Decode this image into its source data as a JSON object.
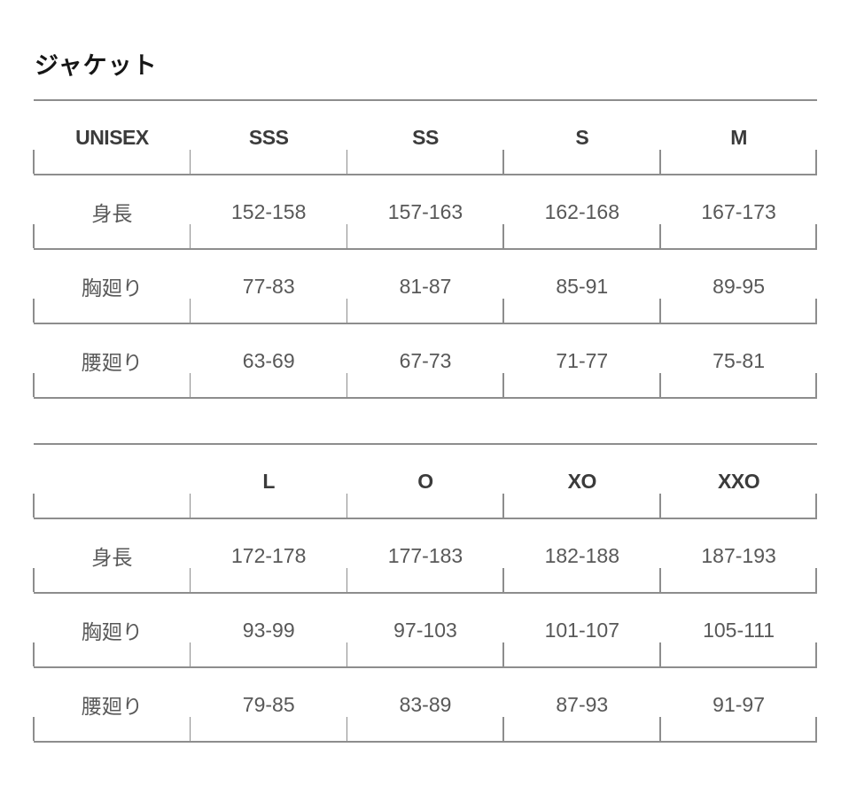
{
  "page": {
    "title": "ジャケット"
  },
  "colors": {
    "rule_line": "#8d8d8d",
    "header_text": "#3b3b3b",
    "body_text": "#585858",
    "title_text": "#161616",
    "background": "#ffffff"
  },
  "tables": [
    {
      "name": "unisex-small-sizes",
      "header": [
        "UNISEX",
        "SSS",
        "SS",
        "S",
        "M"
      ],
      "rows": [
        {
          "label": "身長",
          "values": [
            "152-158",
            "157-163",
            "162-168",
            "167-173"
          ]
        },
        {
          "label": "胸廻り",
          "values": [
            "77-83",
            "81-87",
            "85-91",
            "89-95"
          ]
        },
        {
          "label": "腰廻り",
          "values": [
            "63-69",
            "67-73",
            "71-77",
            "75-81"
          ]
        }
      ]
    },
    {
      "name": "unisex-large-sizes",
      "header": [
        "",
        "L",
        "O",
        "XO",
        "XXO"
      ],
      "rows": [
        {
          "label": "身長",
          "values": [
            "172-178",
            "177-183",
            "182-188",
            "187-193"
          ]
        },
        {
          "label": "胸廻り",
          "values": [
            "93-99",
            "97-103",
            "101-107",
            "105-111"
          ]
        },
        {
          "label": "腰廻り",
          "values": [
            "79-85",
            "83-89",
            "87-93",
            "91-97"
          ]
        }
      ]
    }
  ]
}
